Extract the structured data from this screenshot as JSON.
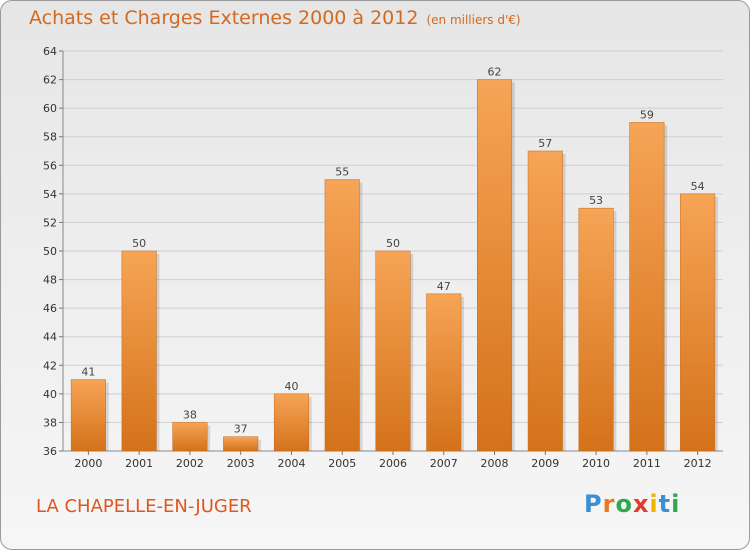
{
  "title": "Achats et Charges Externes 2000 à 2012",
  "unit": "(en milliers d'€)",
  "commune": "LA CHAPELLE-EN-JUGER",
  "logo": {
    "letters": [
      "P",
      "r",
      "o",
      "x",
      "i",
      "t",
      "i"
    ],
    "colors": [
      "#3b8fd6",
      "#e8791e",
      "#2fa84f",
      "#e23b2e",
      "#f0b400",
      "#3b8fd6",
      "#2fa84f"
    ]
  },
  "colors": {
    "bar_light": "#f6a456",
    "bar_dark": "#d4721a",
    "accent": "#d2691e"
  },
  "chart_data": {
    "type": "bar",
    "categories": [
      "2000",
      "2001",
      "2002",
      "2003",
      "2004",
      "2005",
      "2006",
      "2007",
      "2008",
      "2009",
      "2010",
      "2011",
      "2012"
    ],
    "values": [
      41,
      50,
      38,
      37,
      40,
      55,
      50,
      47,
      62,
      57,
      53,
      59,
      54
    ],
    "ylim": [
      36,
      64
    ],
    "yticks": [
      36,
      38,
      40,
      42,
      44,
      46,
      48,
      50,
      52,
      54,
      56,
      58,
      60,
      62,
      64
    ],
    "grid": true,
    "title": "Achats et Charges Externes 2000 à 2012",
    "xlabel": "",
    "ylabel": ""
  }
}
